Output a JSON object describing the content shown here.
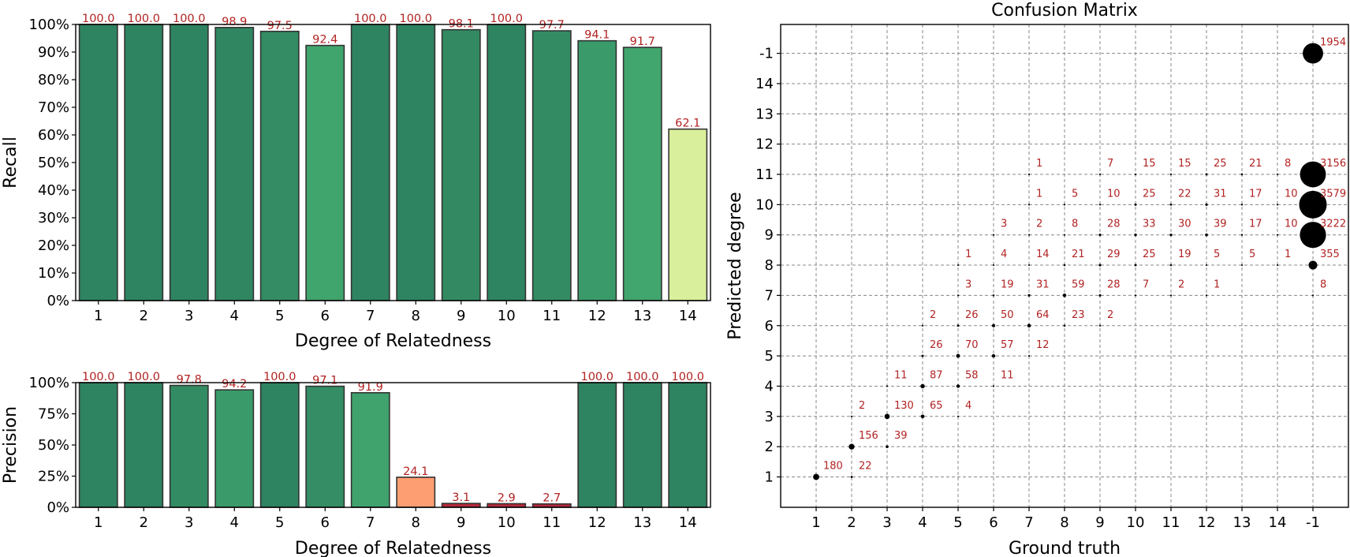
{
  "chart_data": [
    {
      "id": "recall",
      "type": "bar",
      "categories": [
        "1",
        "2",
        "3",
        "4",
        "5",
        "6",
        "7",
        "8",
        "9",
        "10",
        "11",
        "12",
        "13",
        "14"
      ],
      "values": [
        100.0,
        100.0,
        100.0,
        98.9,
        97.5,
        92.4,
        100.0,
        100.0,
        98.1,
        100.0,
        97.7,
        94.1,
        91.7,
        62.1
      ],
      "value_labels": [
        "100.0",
        "100.0",
        "100.0",
        "98.9",
        "97.5",
        "92.4",
        "100.0",
        "100.0",
        "98.1",
        "100.0",
        "97.7",
        "94.1",
        "91.7",
        "62.1"
      ],
      "colors": [
        "#2e8360",
        "#2e8360",
        "#2e8360",
        "#2f8661",
        "#338c63",
        "#40a46d",
        "#2e8360",
        "#2e8360",
        "#338a62",
        "#2e8360",
        "#338b63",
        "#3a9a69",
        "#41a56e",
        "#d9ef9b"
      ],
      "xlabel": "Degree of Relatedness",
      "ylabel": "Recall",
      "ylim": [
        0,
        100
      ],
      "yticks": [
        "0%",
        "10%",
        "20%",
        "30%",
        "40%",
        "50%",
        "60%",
        "70%",
        "80%",
        "90%",
        "100%"
      ]
    },
    {
      "id": "precision",
      "type": "bar",
      "categories": [
        "1",
        "2",
        "3",
        "4",
        "5",
        "6",
        "7",
        "8",
        "9",
        "10",
        "11",
        "12",
        "13",
        "14"
      ],
      "values": [
        100.0,
        100.0,
        97.8,
        94.2,
        100.0,
        97.1,
        91.9,
        24.1,
        3.1,
        2.9,
        2.7,
        100.0,
        100.0,
        100.0
      ],
      "value_labels": [
        "100.0",
        "100.0",
        "97.8",
        "94.2",
        "100.0",
        "97.1",
        "91.9",
        "24.1",
        "3.1",
        "2.9",
        "2.7",
        "100.0",
        "100.0",
        "100.0"
      ],
      "colors": [
        "#2e8360",
        "#2e8360",
        "#338b63",
        "#3a9a69",
        "#2e8360",
        "#348d64",
        "#40a36d",
        "#fc9e71",
        "#b5283a",
        "#b5283a",
        "#b5283a",
        "#2e8360",
        "#2e8360",
        "#2e8360"
      ],
      "xlabel": "Degree of Relatedness",
      "ylabel": "Precision",
      "ylim": [
        0,
        100
      ],
      "yticks": [
        "0%",
        "25%",
        "50%",
        "75%",
        "100%"
      ]
    },
    {
      "id": "confusion",
      "type": "scatter",
      "title": "Confusion Matrix",
      "xlabel": "Ground truth",
      "ylabel": "Predicted degree",
      "categories": [
        "1",
        "2",
        "3",
        "4",
        "5",
        "6",
        "7",
        "8",
        "9",
        "10",
        "11",
        "12",
        "13",
        "14",
        "-1"
      ],
      "grid": true,
      "points": [
        {
          "gt": "1",
          "pred": "1",
          "count": 180,
          "label": "180"
        },
        {
          "gt": "2",
          "pred": "1",
          "count": 22,
          "label": "22"
        },
        {
          "gt": "2",
          "pred": "2",
          "count": 156,
          "label": "156"
        },
        {
          "gt": "2",
          "pred": "3",
          "count": 2,
          "label": "2"
        },
        {
          "gt": "3",
          "pred": "2",
          "count": 39,
          "label": "39"
        },
        {
          "gt": "3",
          "pred": "3",
          "count": 130,
          "label": "130"
        },
        {
          "gt": "3",
          "pred": "4",
          "count": 11,
          "label": "11"
        },
        {
          "gt": "4",
          "pred": "3",
          "count": 65,
          "label": "65"
        },
        {
          "gt": "4",
          "pred": "4",
          "count": 87,
          "label": "87"
        },
        {
          "gt": "4",
          "pred": "5",
          "count": 26,
          "label": "26"
        },
        {
          "gt": "4",
          "pred": "6",
          "count": 2,
          "label": "2"
        },
        {
          "gt": "5",
          "pred": "3",
          "count": 4,
          "label": "4"
        },
        {
          "gt": "5",
          "pred": "4",
          "count": 58,
          "label": "58"
        },
        {
          "gt": "5",
          "pred": "5",
          "count": 70,
          "label": "70"
        },
        {
          "gt": "5",
          "pred": "6",
          "count": 26,
          "label": "26"
        },
        {
          "gt": "5",
          "pred": "7",
          "count": 3,
          "label": "3"
        },
        {
          "gt": "5",
          "pred": "8",
          "count": 1,
          "label": "1"
        },
        {
          "gt": "6",
          "pred": "4",
          "count": 11,
          "label": "11"
        },
        {
          "gt": "6",
          "pred": "5",
          "count": 57,
          "label": "57"
        },
        {
          "gt": "6",
          "pred": "6",
          "count": 50,
          "label": "50"
        },
        {
          "gt": "6",
          "pred": "7",
          "count": 19,
          "label": "19"
        },
        {
          "gt": "6",
          "pred": "8",
          "count": 4,
          "label": "4"
        },
        {
          "gt": "6",
          "pred": "9",
          "count": 3,
          "label": "3"
        },
        {
          "gt": "7",
          "pred": "5",
          "count": 12,
          "label": "12"
        },
        {
          "gt": "7",
          "pred": "6",
          "count": 64,
          "label": "64"
        },
        {
          "gt": "7",
          "pred": "7",
          "count": 31,
          "label": "31"
        },
        {
          "gt": "7",
          "pred": "8",
          "count": 14,
          "label": "14"
        },
        {
          "gt": "7",
          "pred": "9",
          "count": 2,
          "label": "2"
        },
        {
          "gt": "7",
          "pred": "10",
          "count": 1,
          "label": "1"
        },
        {
          "gt": "7",
          "pred": "11",
          "count": 1,
          "label": "1"
        },
        {
          "gt": "8",
          "pred": "6",
          "count": 23,
          "label": "23"
        },
        {
          "gt": "8",
          "pred": "7",
          "count": 59,
          "label": "59"
        },
        {
          "gt": "8",
          "pred": "8",
          "count": 21,
          "label": "21"
        },
        {
          "gt": "8",
          "pred": "9",
          "count": 8,
          "label": "8"
        },
        {
          "gt": "8",
          "pred": "10",
          "count": 5,
          "label": "5"
        },
        {
          "gt": "9",
          "pred": "6",
          "count": 2,
          "label": "2"
        },
        {
          "gt": "9",
          "pred": "7",
          "count": 28,
          "label": "28"
        },
        {
          "gt": "9",
          "pred": "8",
          "count": 29,
          "label": "29"
        },
        {
          "gt": "9",
          "pred": "9",
          "count": 28,
          "label": "28"
        },
        {
          "gt": "9",
          "pred": "10",
          "count": 10,
          "label": "10"
        },
        {
          "gt": "9",
          "pred": "11",
          "count": 7,
          "label": "7"
        },
        {
          "gt": "10",
          "pred": "7",
          "count": 7,
          "label": "7"
        },
        {
          "gt": "10",
          "pred": "8",
          "count": 25,
          "label": "25"
        },
        {
          "gt": "10",
          "pred": "9",
          "count": 33,
          "label": "33"
        },
        {
          "gt": "10",
          "pred": "10",
          "count": 25,
          "label": "25"
        },
        {
          "gt": "10",
          "pred": "11",
          "count": 15,
          "label": "15"
        },
        {
          "gt": "11",
          "pred": "7",
          "count": 2,
          "label": "2"
        },
        {
          "gt": "11",
          "pred": "8",
          "count": 19,
          "label": "19"
        },
        {
          "gt": "11",
          "pred": "9",
          "count": 30,
          "label": "30"
        },
        {
          "gt": "11",
          "pred": "10",
          "count": 22,
          "label": "22"
        },
        {
          "gt": "11",
          "pred": "11",
          "count": 15,
          "label": "15"
        },
        {
          "gt": "12",
          "pred": "7",
          "count": 1,
          "label": "1"
        },
        {
          "gt": "12",
          "pred": "8",
          "count": 5,
          "label": "5"
        },
        {
          "gt": "12",
          "pred": "9",
          "count": 39,
          "label": "39"
        },
        {
          "gt": "12",
          "pred": "10",
          "count": 31,
          "label": "31"
        },
        {
          "gt": "12",
          "pred": "11",
          "count": 25,
          "label": "25"
        },
        {
          "gt": "13",
          "pred": "8",
          "count": 5,
          "label": "5"
        },
        {
          "gt": "13",
          "pred": "9",
          "count": 17,
          "label": "17"
        },
        {
          "gt": "13",
          "pred": "10",
          "count": 17,
          "label": "17"
        },
        {
          "gt": "13",
          "pred": "11",
          "count": 21,
          "label": "21"
        },
        {
          "gt": "14",
          "pred": "8",
          "count": 1,
          "label": "1"
        },
        {
          "gt": "14",
          "pred": "9",
          "count": 10,
          "label": "10"
        },
        {
          "gt": "14",
          "pred": "10",
          "count": 10,
          "label": "10"
        },
        {
          "gt": "14",
          "pred": "11",
          "count": 8,
          "label": "8"
        },
        {
          "gt": "-1",
          "pred": "7",
          "count": 8,
          "label": "8"
        },
        {
          "gt": "-1",
          "pred": "8",
          "count": 355,
          "label": "355"
        },
        {
          "gt": "-1",
          "pred": "9",
          "count": 3222,
          "label": "3222"
        },
        {
          "gt": "-1",
          "pred": "10",
          "count": 3579,
          "label": "3579"
        },
        {
          "gt": "-1",
          "pred": "11",
          "count": 3156,
          "label": "3156"
        },
        {
          "gt": "-1",
          "pred": "-1",
          "count": 1954,
          "label": "1954"
        }
      ]
    }
  ]
}
